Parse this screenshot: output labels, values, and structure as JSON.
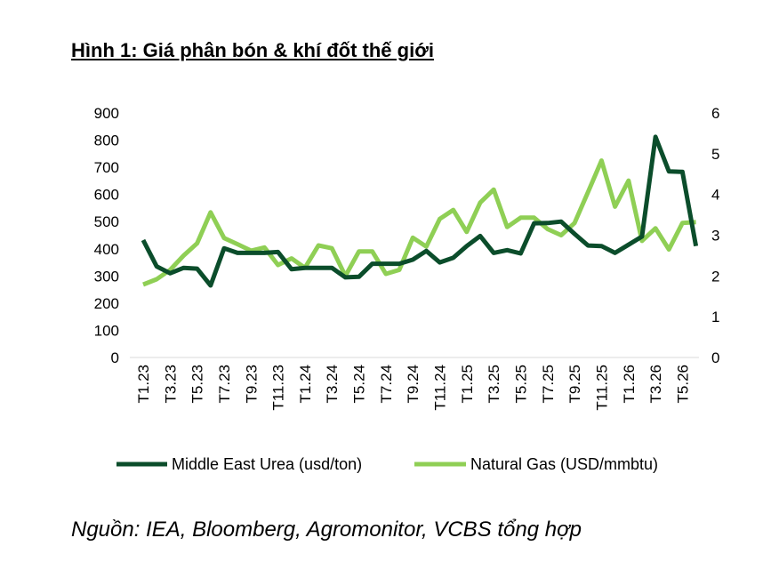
{
  "title": "Hình 1: Giá phân bón & khí đốt thế giới",
  "source": "Nguồn: IEA, Bloomberg, Agromonitor, VCBS tổng hợp",
  "chart_data": {
    "type": "line",
    "x": [
      "T1.23",
      "T2.23",
      "T3.23",
      "T4.23",
      "T5.23",
      "T6.23",
      "T7.23",
      "T8.23",
      "T9.23",
      "T10.23",
      "T11.23",
      "T12.23",
      "T1.24",
      "T2.24",
      "T3.24",
      "T4.24",
      "T5.24",
      "T6.24",
      "T7.24",
      "T8.24",
      "T9.24",
      "T10.24",
      "T11.24",
      "T12.24",
      "T1.25",
      "T2.25",
      "T3.25",
      "T4.25",
      "T5.25",
      "T6.25",
      "T7.25",
      "T8.25",
      "T9.25",
      "T10.25",
      "T11.25",
      "T12.25",
      "T1.26",
      "T2.26",
      "T3.26",
      "T4.26",
      "T5.26",
      "T6.26"
    ],
    "x_tick_labels": [
      "T1.23",
      "T3.23",
      "T5.23",
      "T7.23",
      "T9.23",
      "T11.23",
      "T1.24",
      "T3.24",
      "T5.24",
      "T7.24",
      "T9.24",
      "T11.24",
      "T1.25",
      "T3.25",
      "T5.25",
      "T7.25",
      "T9.25",
      "T11.25",
      "T1.26",
      "T3.26",
      "T5.26"
    ],
    "series": [
      {
        "name": "Middle East Urea (usd/ton)",
        "axis": "left",
        "color": "#0b4d2b",
        "values": [
          432,
          335,
          310,
          330,
          327,
          265,
          402,
          385,
          385,
          385,
          388,
          325,
          330,
          330,
          330,
          295,
          297,
          345,
          345,
          345,
          360,
          392,
          350,
          367,
          410,
          447,
          385,
          395,
          383,
          494,
          495,
          500,
          455,
          412,
          410,
          385,
          415,
          445,
          812,
          685,
          683,
          410
        ]
      },
      {
        "name": "Natural Gas (USD/mmbtu)",
        "axis": "right",
        "color": "#8fcf55",
        "values": [
          1.79,
          1.92,
          2.15,
          2.5,
          2.8,
          3.56,
          2.93,
          2.78,
          2.62,
          2.7,
          2.27,
          2.43,
          2.2,
          2.75,
          2.68,
          2.0,
          2.6,
          2.6,
          2.05,
          2.15,
          2.94,
          2.72,
          3.4,
          3.62,
          3.08,
          3.8,
          4.12,
          3.2,
          3.43,
          3.43,
          3.15,
          3.0,
          3.3,
          4.06,
          4.83,
          3.7,
          4.34,
          2.86,
          3.17,
          2.65,
          3.3,
          3.32
        ]
      }
    ],
    "y_left": {
      "min": 0,
      "max": 900,
      "ticks": [
        0,
        100,
        200,
        300,
        400,
        500,
        600,
        700,
        800,
        900
      ]
    },
    "y_right": {
      "min": 0,
      "max": 6,
      "ticks": [
        0,
        1,
        2,
        3,
        4,
        5,
        6
      ]
    },
    "grid": false,
    "legend_position": "bottom"
  }
}
